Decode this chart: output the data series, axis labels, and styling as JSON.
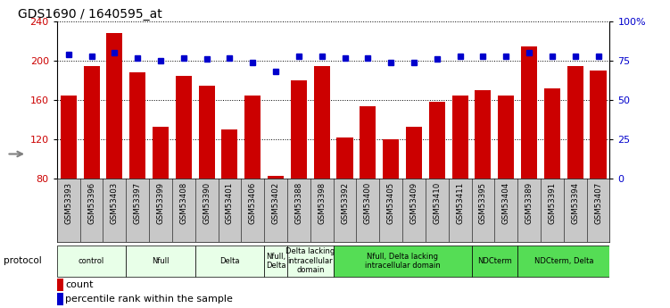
{
  "title": "GDS1690 / 1640595_at",
  "samples": [
    "GSM53393",
    "GSM53396",
    "GSM53403",
    "GSM53397",
    "GSM53399",
    "GSM53408",
    "GSM53390",
    "GSM53401",
    "GSM53406",
    "GSM53402",
    "GSM53388",
    "GSM53398",
    "GSM53392",
    "GSM53400",
    "GSM53405",
    "GSM53409",
    "GSM53410",
    "GSM53411",
    "GSM53395",
    "GSM53404",
    "GSM53389",
    "GSM53391",
    "GSM53394",
    "GSM53407"
  ],
  "counts": [
    165,
    195,
    228,
    188,
    133,
    185,
    175,
    130,
    165,
    83,
    180,
    195,
    122,
    154,
    120,
    133,
    158,
    165,
    170,
    165,
    215,
    172,
    195,
    190
  ],
  "percentiles": [
    79,
    78,
    80,
    77,
    75,
    77,
    76,
    77,
    74,
    68,
    78,
    78,
    77,
    77,
    74,
    74,
    76,
    78,
    78,
    78,
    80,
    78,
    78,
    78
  ],
  "ylim_left": [
    80,
    240
  ],
  "ylim_right": [
    0,
    100
  ],
  "yticks_left": [
    80,
    120,
    160,
    200,
    240
  ],
  "yticks_right": [
    0,
    25,
    50,
    75,
    100
  ],
  "ytick_labels_right": [
    "0",
    "25",
    "50",
    "75",
    "100%"
  ],
  "bar_color": "#cc0000",
  "dot_color": "#0000cc",
  "protocol_groups": [
    {
      "label": "control",
      "start": 0,
      "end": 2,
      "color": "#e8ffe8",
      "span": 3
    },
    {
      "label": "Nfull",
      "start": 3,
      "end": 5,
      "color": "#e8ffe8",
      "span": 3
    },
    {
      "label": "Delta",
      "start": 6,
      "end": 8,
      "color": "#e8ffe8",
      "span": 3
    },
    {
      "label": "Nfull,\nDelta",
      "start": 9,
      "end": 9,
      "color": "#e8ffe8",
      "span": 1
    },
    {
      "label": "Delta lacking\nintracellular\ndomain",
      "start": 10,
      "end": 11,
      "color": "#e8ffe8",
      "span": 2
    },
    {
      "label": "Nfull, Delta lacking\nintracellular domain",
      "start": 12,
      "end": 17,
      "color": "#55dd55",
      "span": 6
    },
    {
      "label": "NDCterm",
      "start": 18,
      "end": 19,
      "color": "#55dd55",
      "span": 2
    },
    {
      "label": "NDCterm, Delta",
      "start": 20,
      "end": 23,
      "color": "#55dd55",
      "span": 4
    }
  ],
  "protocol_label": "protocol",
  "legend_count_label": "count",
  "legend_pct_label": "percentile rank within the sample",
  "axis_label_color_left": "#cc0000",
  "axis_label_color_right": "#0000cc",
  "tick_bg_color": "#c8c8c8",
  "title_fontsize": 10
}
